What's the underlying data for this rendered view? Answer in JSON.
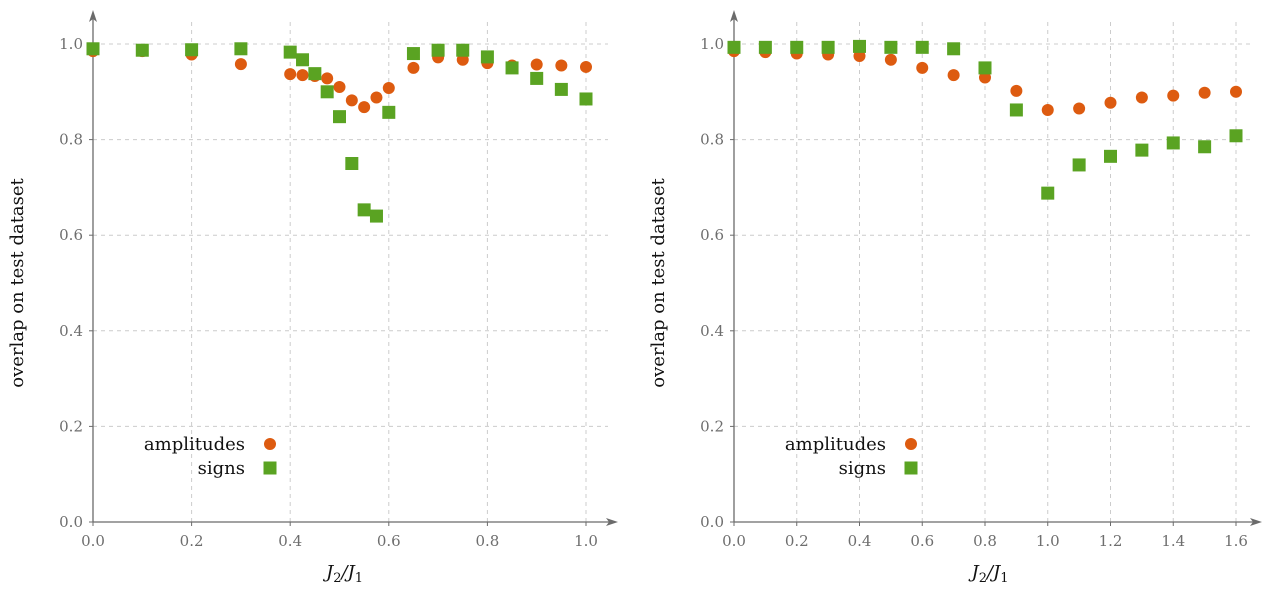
{
  "colors": {
    "amplitudes": "#dd5b10",
    "signs": "#5aa322",
    "axis": "#6b6b6b",
    "grid": "#cccccc"
  },
  "chart_data": [
    {
      "type": "scatter",
      "xlabel_base": "J",
      "xlabel_sub1": "2",
      "xlabel_sep": "/J",
      "xlabel_sub2": "1",
      "ylabel": "overlap on test dataset",
      "xlim": [
        0.0,
        1.0
      ],
      "ylim": [
        0.0,
        1.0
      ],
      "xticks": [
        "0.0",
        "0.2",
        "0.4",
        "0.6",
        "0.8",
        "1.0"
      ],
      "yticks": [
        "0.0",
        "0.2",
        "0.4",
        "0.6",
        "0.8",
        "1.0"
      ],
      "grid": true,
      "legend_position": "bottom-left",
      "series": [
        {
          "name": "amplitudes",
          "marker": "circle",
          "x": [
            0.0,
            0.1,
            0.2,
            0.3,
            0.4,
            0.425,
            0.45,
            0.475,
            0.5,
            0.525,
            0.55,
            0.575,
            0.6,
            0.65,
            0.7,
            0.75,
            0.8,
            0.85,
            0.9,
            0.95,
            1.0
          ],
          "y": [
            0.985,
            0.985,
            0.978,
            0.958,
            0.937,
            0.935,
            0.933,
            0.928,
            0.91,
            0.882,
            0.868,
            0.888,
            0.908,
            0.95,
            0.972,
            0.967,
            0.96,
            0.955,
            0.957,
            0.955,
            0.952
          ]
        },
        {
          "name": "signs",
          "marker": "square",
          "x": [
            0.0,
            0.1,
            0.2,
            0.3,
            0.4,
            0.425,
            0.45,
            0.475,
            0.5,
            0.525,
            0.55,
            0.575,
            0.6,
            0.65,
            0.7,
            0.75,
            0.8,
            0.85,
            0.9,
            0.95,
            1.0
          ],
          "y": [
            0.99,
            0.987,
            0.988,
            0.99,
            0.983,
            0.967,
            0.938,
            0.9,
            0.848,
            0.75,
            0.653,
            0.64,
            0.857,
            0.98,
            0.987,
            0.987,
            0.973,
            0.95,
            0.928,
            0.905,
            0.885
          ]
        }
      ]
    },
    {
      "type": "scatter",
      "xlabel_base": "J",
      "xlabel_sub1": "2",
      "xlabel_sep": "/J",
      "xlabel_sub2": "1",
      "ylabel": "overlap on test dataset",
      "xlim": [
        0.0,
        1.6
      ],
      "ylim": [
        0.0,
        1.0
      ],
      "xticks": [
        "0.0",
        "0.2",
        "0.4",
        "0.6",
        "0.8",
        "1.0",
        "1.2",
        "1.4",
        "1.6"
      ],
      "yticks": [
        "0.0",
        "0.2",
        "0.4",
        "0.6",
        "0.8",
        "1.0"
      ],
      "grid": true,
      "legend_position": "bottom-left",
      "series": [
        {
          "name": "amplitudes",
          "marker": "circle",
          "x": [
            0.0,
            0.1,
            0.2,
            0.3,
            0.4,
            0.5,
            0.6,
            0.7,
            0.8,
            0.9,
            1.0,
            1.1,
            1.2,
            1.3,
            1.4,
            1.5,
            1.6
          ],
          "y": [
            0.985,
            0.983,
            0.98,
            0.978,
            0.975,
            0.967,
            0.95,
            0.935,
            0.93,
            0.902,
            0.862,
            0.865,
            0.877,
            0.888,
            0.892,
            0.898,
            0.9
          ]
        },
        {
          "name": "signs",
          "marker": "square",
          "x": [
            0.0,
            0.1,
            0.2,
            0.3,
            0.4,
            0.5,
            0.6,
            0.7,
            0.8,
            0.9,
            1.0,
            1.1,
            1.2,
            1.3,
            1.4,
            1.5,
            1.6
          ],
          "y": [
            0.993,
            0.993,
            0.993,
            0.993,
            0.995,
            0.993,
            0.993,
            0.99,
            0.95,
            0.862,
            0.688,
            0.747,
            0.765,
            0.778,
            0.793,
            0.785,
            0.808
          ]
        }
      ]
    }
  ]
}
